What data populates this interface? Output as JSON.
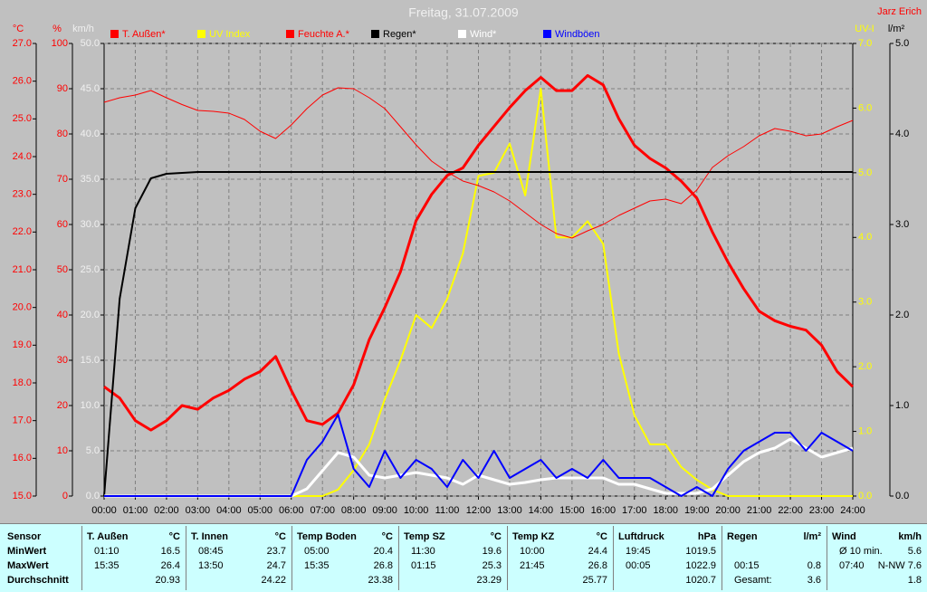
{
  "chart_data": {
    "type": "line",
    "title": "Freitag, 31.07.2009",
    "corner_label": "Jarz Erich",
    "xlim": [
      0,
      24
    ],
    "xticks": [
      {
        "value": 0,
        "label": "00:00"
      },
      {
        "value": 1,
        "label": "01:00"
      },
      {
        "value": 2,
        "label": "02:00"
      },
      {
        "value": 3,
        "label": "03:00"
      },
      {
        "value": 4,
        "label": "04:00"
      },
      {
        "value": 5,
        "label": "05:00"
      },
      {
        "value": 6,
        "label": "06:00"
      },
      {
        "value": 7,
        "label": "07:00"
      },
      {
        "value": 8,
        "label": "08:00"
      },
      {
        "value": 9,
        "label": "09:00"
      },
      {
        "value": 10,
        "label": "10:00"
      },
      {
        "value": 11,
        "label": "11:00"
      },
      {
        "value": 12,
        "label": "12:00"
      },
      {
        "value": 13,
        "label": "13:00"
      },
      {
        "value": 14,
        "label": "14:00"
      },
      {
        "value": 15,
        "label": "15:00"
      },
      {
        "value": 16,
        "label": "16:00"
      },
      {
        "value": 17,
        "label": "17:00"
      },
      {
        "value": 18,
        "label": "18:00"
      },
      {
        "value": 19,
        "label": "19:00"
      },
      {
        "value": 20,
        "label": "20:00"
      },
      {
        "value": 21,
        "label": "21:00"
      },
      {
        "value": 22,
        "label": "22:00"
      },
      {
        "value": 23,
        "label": "23:00"
      },
      {
        "value": 24,
        "label": "24:00"
      }
    ],
    "grid": true,
    "axes": [
      {
        "label": "°C",
        "color": "#ff0000",
        "lim": [
          15,
          27
        ],
        "ticks": [
          {
            "value": 15,
            "label": "15.0"
          },
          {
            "value": 16,
            "label": "16.0"
          },
          {
            "value": 17,
            "label": "17.0"
          },
          {
            "value": 18,
            "label": "18.0"
          },
          {
            "value": 19,
            "label": "19.0"
          },
          {
            "value": 20,
            "label": "20.0"
          },
          {
            "value": 21,
            "label": "21.0"
          },
          {
            "value": 22,
            "label": "22.0"
          },
          {
            "value": 23,
            "label": "23.0"
          },
          {
            "value": 24,
            "label": "24.0"
          },
          {
            "value": 25,
            "label": "25.0"
          },
          {
            "value": 26,
            "label": "26.0"
          },
          {
            "value": 27,
            "label": "27.0"
          }
        ]
      },
      {
        "label": "%",
        "color": "#ff0000",
        "lim": [
          0,
          100
        ],
        "ticks": [
          0,
          10,
          20,
          30,
          40,
          50,
          60,
          70,
          80,
          90,
          100
        ]
      },
      {
        "label": "km/h",
        "color": "#f0f0f0",
        "lim": [
          0,
          50
        ],
        "ticks": [
          {
            "value": 0,
            "label": "0.0"
          },
          {
            "value": 5,
            "label": "5.0"
          },
          {
            "value": 10,
            "label": "10.0"
          },
          {
            "value": 15,
            "label": "15.0"
          },
          {
            "value": 20,
            "label": "20.0"
          },
          {
            "value": 25,
            "label": "25.0"
          },
          {
            "value": 30,
            "label": "30.0"
          },
          {
            "value": 35,
            "label": "35.0"
          },
          {
            "value": 40,
            "label": "40.0"
          },
          {
            "value": 45,
            "label": "45.0"
          },
          {
            "value": 50,
            "label": "50.0"
          }
        ]
      },
      {
        "label": "UV-I",
        "color": "#ffff00",
        "lim": [
          0,
          7
        ],
        "ticks": [
          {
            "value": 0,
            "label": "0.0"
          },
          {
            "value": 1,
            "label": "1.0"
          },
          {
            "value": 2,
            "label": "2.0"
          },
          {
            "value": 3,
            "label": "3.0"
          },
          {
            "value": 4,
            "label": "4.0"
          },
          {
            "value": 5,
            "label": "5.0"
          },
          {
            "value": 6,
            "label": "6.0"
          },
          {
            "value": 7,
            "label": "7.0"
          }
        ]
      },
      {
        "label": "l/m²",
        "color": "#000000",
        "lim": [
          0,
          5
        ],
        "ticks": [
          {
            "value": 0,
            "label": "0.0"
          },
          {
            "value": 1,
            "label": "1.0"
          },
          {
            "value": 2,
            "label": "2.0"
          },
          {
            "value": 3,
            "label": "3.0"
          },
          {
            "value": 4,
            "label": "4.0"
          },
          {
            "value": 5,
            "label": "5.0"
          }
        ]
      }
    ],
    "x": [
      0,
      0.5,
      1,
      1.5,
      2,
      2.5,
      3,
      3.5,
      4,
      4.5,
      5,
      5.5,
      6,
      6.5,
      7,
      7.5,
      8,
      8.5,
      9,
      9.5,
      10,
      10.5,
      11,
      11.5,
      12,
      12.5,
      13,
      13.5,
      14,
      14.5,
      15,
      15.5,
      16,
      16.5,
      17,
      17.5,
      18,
      18.5,
      19,
      19.5,
      20,
      20.5,
      21,
      21.5,
      22,
      22.5,
      23,
      23.5,
      24
    ],
    "series": [
      {
        "name": "T. Außen*",
        "color": "#ff0000",
        "axis": 0,
        "values": [
          17.9,
          17.6,
          17.0,
          16.75,
          17.0,
          17.4,
          17.3,
          17.6,
          17.8,
          18.1,
          18.3,
          18.7,
          17.8,
          17.0,
          16.9,
          17.2,
          17.95,
          19.15,
          20.0,
          20.95,
          22.3,
          23.0,
          23.5,
          23.7,
          24.3,
          24.8,
          25.3,
          25.75,
          26.1,
          25.75,
          25.75,
          26.15,
          25.9,
          25.0,
          24.3,
          23.95,
          23.7,
          23.35,
          22.9,
          22.0,
          21.2,
          20.5,
          19.9,
          19.65,
          19.5,
          19.4,
          19.0,
          18.3,
          17.9
        ]
      },
      {
        "name": "UV Index",
        "color": "#ffff00",
        "axis": 3,
        "values": [
          0,
          0,
          0,
          0,
          0,
          0,
          0,
          0,
          0,
          0,
          0,
          0,
          0,
          0,
          0,
          0.1,
          0.4,
          0.8,
          1.5,
          2.1,
          2.8,
          2.6,
          3.05,
          3.75,
          4.95,
          5.0,
          5.45,
          4.65,
          6.3,
          4.0,
          4.0,
          4.25,
          3.9,
          2.2,
          1.25,
          0.8,
          0.8,
          0.45,
          0.25,
          0.1,
          0,
          0,
          0,
          0,
          0,
          0,
          0,
          0,
          0
        ]
      },
      {
        "name": "Feuchte A.*",
        "color": "#ff0000",
        "axis": 1,
        "values": [
          87,
          88,
          88.6,
          89.6,
          88,
          86.5,
          85.2,
          85,
          84.6,
          83.2,
          80.6,
          79,
          82,
          85.6,
          88.6,
          90.2,
          90,
          88,
          85.6,
          81.6,
          77.6,
          74,
          71.6,
          69.6,
          68.6,
          67.2,
          65.2,
          62.6,
          60,
          58,
          57,
          58.6,
          60,
          62,
          63.6,
          65.2,
          65.6,
          64.6,
          67.6,
          72.6,
          75.2,
          77.2,
          79.6,
          81.2,
          80.6,
          79.6,
          80,
          81.6,
          83
        ]
      },
      {
        "name": "Regen*",
        "color": "#000000",
        "axis": 4,
        "values": [
          0,
          2.18,
          3.18,
          3.51,
          3.56,
          3.57,
          3.58,
          3.58,
          3.58,
          3.58,
          3.58,
          3.58,
          3.58,
          3.58,
          3.58,
          3.58,
          3.58,
          3.58,
          3.58,
          3.58,
          3.58,
          3.58,
          3.58,
          3.58,
          3.58,
          3.58,
          3.58,
          3.58,
          3.58,
          3.58,
          3.58,
          3.58,
          3.58,
          3.58,
          3.58,
          3.58,
          3.58,
          3.58,
          3.58,
          3.58,
          3.58,
          3.58,
          3.58,
          3.58,
          3.58,
          3.58,
          3.58,
          3.58,
          3.58
        ]
      },
      {
        "name": "Wind*",
        "color": "#ffffff",
        "axis": 2,
        "values": [
          0,
          0,
          0,
          0,
          0,
          0,
          0,
          0,
          0,
          0,
          0,
          0,
          0,
          0.8,
          2.8,
          4.8,
          4.3,
          2.3,
          2.0,
          2.3,
          2.6,
          2.3,
          2.0,
          1.3,
          2.3,
          1.8,
          1.3,
          1.5,
          1.8,
          2.0,
          2.0,
          2.0,
          2.0,
          1.3,
          1.3,
          0.8,
          0.3,
          0.3,
          0.3,
          0.8,
          2.3,
          3.8,
          4.8,
          5.3,
          6.3,
          5.3,
          4.3,
          4.8,
          5.3
        ]
      },
      {
        "name": "Windböen",
        "color": "#0000ff",
        "axis": 2,
        "values": [
          0,
          0,
          0,
          0,
          0,
          0,
          0,
          0,
          0,
          0,
          0,
          0,
          0,
          4,
          6,
          9,
          3,
          1,
          5,
          2,
          4,
          3,
          1,
          4,
          2,
          5,
          2,
          3,
          4,
          2,
          3,
          2,
          4,
          2,
          2,
          2,
          1,
          0,
          1,
          0,
          3,
          5,
          6,
          7,
          7,
          5,
          7,
          6,
          5
        ]
      }
    ]
  },
  "table": {
    "header": "Sensor",
    "row_labels": [
      "MinWert",
      "MaxWert",
      "Durchschnitt"
    ],
    "columns": [
      {
        "header": "T. Außen",
        "unit": "°C",
        "cells": [
          [
            "01:10",
            "16.5"
          ],
          [
            "15:35",
            "26.4"
          ],
          [
            null,
            "20.93"
          ]
        ]
      },
      {
        "header": "T. Innen",
        "unit": "°C",
        "cells": [
          [
            "08:45",
            "23.7"
          ],
          [
            "13:50",
            "24.7"
          ],
          [
            null,
            "24.22"
          ]
        ]
      },
      {
        "header": "Temp Boden",
        "unit": "°C",
        "cells": [
          [
            "05:00",
            "20.4"
          ],
          [
            "15:35",
            "26.8"
          ],
          [
            null,
            "23.38"
          ]
        ]
      },
      {
        "header": "Temp SZ",
        "unit": "°C",
        "cells": [
          [
            "11:30",
            "19.6"
          ],
          [
            "01:15",
            "25.3"
          ],
          [
            null,
            "23.29"
          ]
        ]
      },
      {
        "header": "Temp KZ",
        "unit": "°C",
        "cells": [
          [
            "10:00",
            "24.4"
          ],
          [
            "21:45",
            "26.8"
          ],
          [
            null,
            "25.77"
          ]
        ]
      },
      {
        "header": "Luftdruck",
        "unit": "hPa",
        "cells": [
          [
            "19:45",
            "1019.5"
          ],
          [
            "00:05",
            "1022.9"
          ],
          [
            null,
            "1020.7"
          ]
        ]
      },
      {
        "header": "Regen",
        "unit": "l/m²",
        "cells": [
          [
            null,
            null
          ],
          [
            "00:15",
            "0.8"
          ],
          [
            "Gesamt:",
            "3.6"
          ]
        ]
      },
      {
        "header": "Wind",
        "unit": "km/h",
        "cells": [
          [
            "Ø 10 min.",
            "5.6"
          ],
          [
            "07:40",
            "N-NW 7.6"
          ],
          [
            null,
            "1.8"
          ]
        ]
      }
    ]
  }
}
